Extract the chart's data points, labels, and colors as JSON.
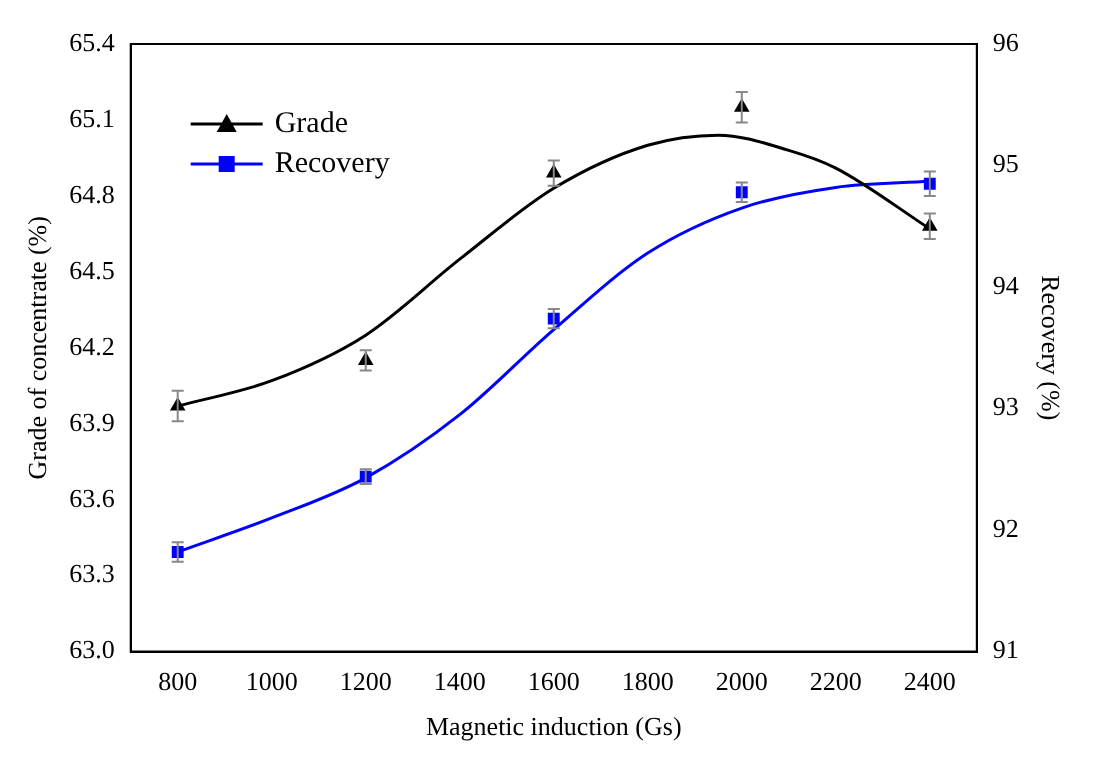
{
  "chart_data": {
    "type": "scatter",
    "xlabel": "Magnetic induction (Gs)",
    "ylabel": "Grade of concentrate (%)",
    "y2label": "Recovery (%)",
    "xlim": [
      700,
      2500
    ],
    "xticks": [
      800,
      1000,
      1200,
      1400,
      1600,
      1800,
      2000,
      2200,
      2400
    ],
    "ylim": [
      63.0,
      65.4
    ],
    "yticks": [
      {
        "value": 63.0,
        "label": "63.0"
      },
      {
        "value": 63.3,
        "label": "63.3"
      },
      {
        "value": 63.6,
        "label": "63.6"
      },
      {
        "value": 63.9,
        "label": "63.9"
      },
      {
        "value": 64.2,
        "label": "64.2"
      },
      {
        "value": 64.5,
        "label": "64.5"
      },
      {
        "value": 64.8,
        "label": "64.8"
      },
      {
        "value": 65.1,
        "label": "65.1"
      },
      {
        "value": 65.4,
        "label": "65.4"
      }
    ],
    "y2lim": [
      91,
      96
    ],
    "y2ticks": [
      91,
      92,
      93,
      94,
      95,
      96
    ],
    "grid": false,
    "legend": "top left",
    "series": [
      {
        "name": "Grade",
        "marker": "triangle",
        "color": "#000000",
        "x": [
          800,
          1200,
          1600,
          2000,
          2400
        ],
        "values": [
          63.97,
          64.15,
          64.89,
          65.15,
          64.68
        ],
        "errors": [
          0.06,
          0.04,
          0.05,
          0.06,
          0.05
        ]
      },
      {
        "name": "Recovery",
        "marker": "square",
        "axis": "y2",
        "color": "#0000ff",
        "x": [
          800,
          1200,
          1600,
          2000,
          2400
        ],
        "values": [
          91.82,
          92.44,
          93.74,
          94.78,
          94.85
        ],
        "errors": [
          0.08,
          0.06,
          0.08,
          0.08,
          0.1
        ]
      },
      {
        "type": "line",
        "marker": "none",
        "color": "#000000",
        "x": [
          800,
          1000,
          1200,
          1400,
          1600,
          1800,
          1950,
          2100,
          2200,
          2400
        ],
        "values": [
          63.97,
          64.07,
          64.25,
          64.55,
          64.83,
          65.0,
          65.04,
          64.98,
          64.91,
          64.67
        ]
      },
      {
        "type": "line",
        "marker": "none",
        "axis": "y2",
        "color": "#0000ff",
        "x": [
          800,
          1000,
          1200,
          1400,
          1600,
          1800,
          2000,
          2200,
          2400
        ],
        "values": [
          91.82,
          92.1,
          92.43,
          92.95,
          93.65,
          94.28,
          94.65,
          94.82,
          94.87
        ]
      }
    ]
  }
}
